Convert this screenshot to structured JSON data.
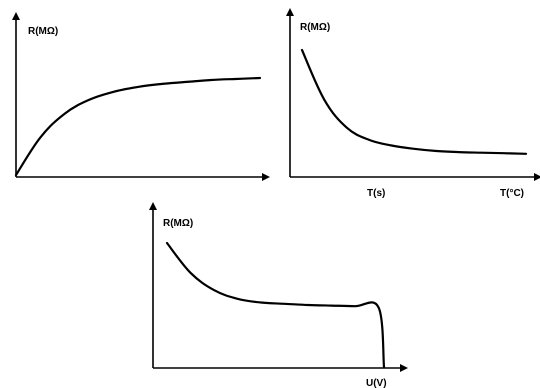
{
  "chart_data": [
    {
      "type": "line",
      "title": "",
      "ylabel": "R(MΩ)",
      "xlabel": "",
      "trend": "rises steeply then saturates",
      "series": [
        {
          "values": [
            0,
            38,
            62,
            76,
            84,
            89,
            92,
            94,
            96,
            97,
            98
          ]
        }
      ]
    },
    {
      "type": "line",
      "title": "",
      "ylabel": "R(MΩ)",
      "xlabel": "T(°C)",
      "tick_labels": [
        "T(s)"
      ],
      "trend": "falls steeply then levels off",
      "series": [
        {
          "values": [
            100,
            55,
            30,
            19,
            14,
            11,
            9,
            8,
            7.5,
            7,
            6.5
          ]
        }
      ]
    },
    {
      "type": "line",
      "title": "",
      "ylabel": "R(MΩ)",
      "xlabel": "U(V)",
      "trend": "decreases, plateaus, then drops abruptly to zero",
      "series": [
        {
          "values": [
            100,
            76,
            62,
            55,
            52,
            51,
            50,
            49.5,
            49,
            48,
            0
          ]
        }
      ]
    }
  ]
}
